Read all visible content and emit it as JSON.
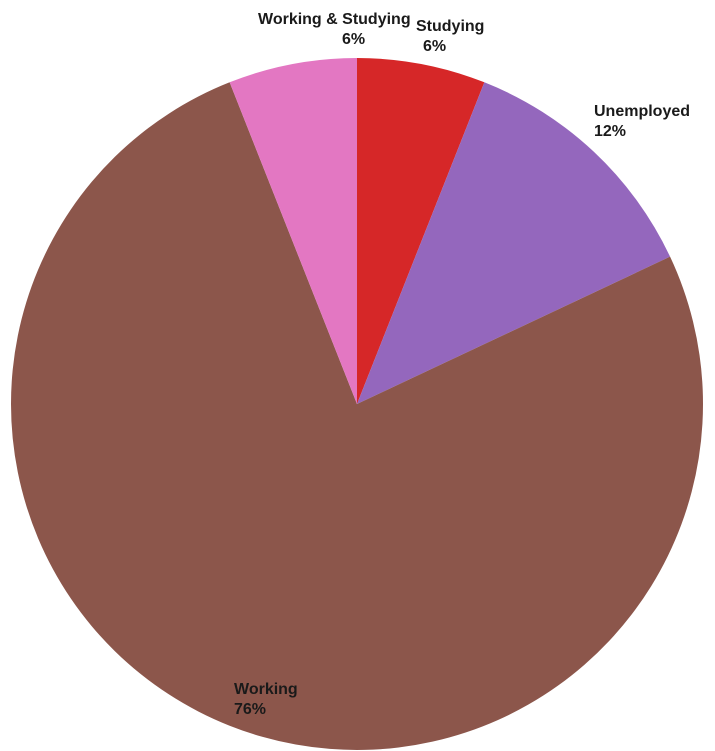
{
  "chart_data": {
    "type": "pie",
    "slices": [
      {
        "label": "Studying",
        "value": 6,
        "value_label": "6%",
        "color": "#d62728"
      },
      {
        "label": "Unemployed",
        "value": 12,
        "value_label": "12%",
        "color": "#9467bd"
      },
      {
        "label": "Working",
        "value": 76,
        "value_label": "76%",
        "color": "#8c564b"
      },
      {
        "label": "Working & Studying",
        "value": 6,
        "value_label": "6%",
        "color": "#e377c2"
      }
    ],
    "start": "12 o'clock",
    "direction": "clockwise",
    "legend": "none"
  }
}
